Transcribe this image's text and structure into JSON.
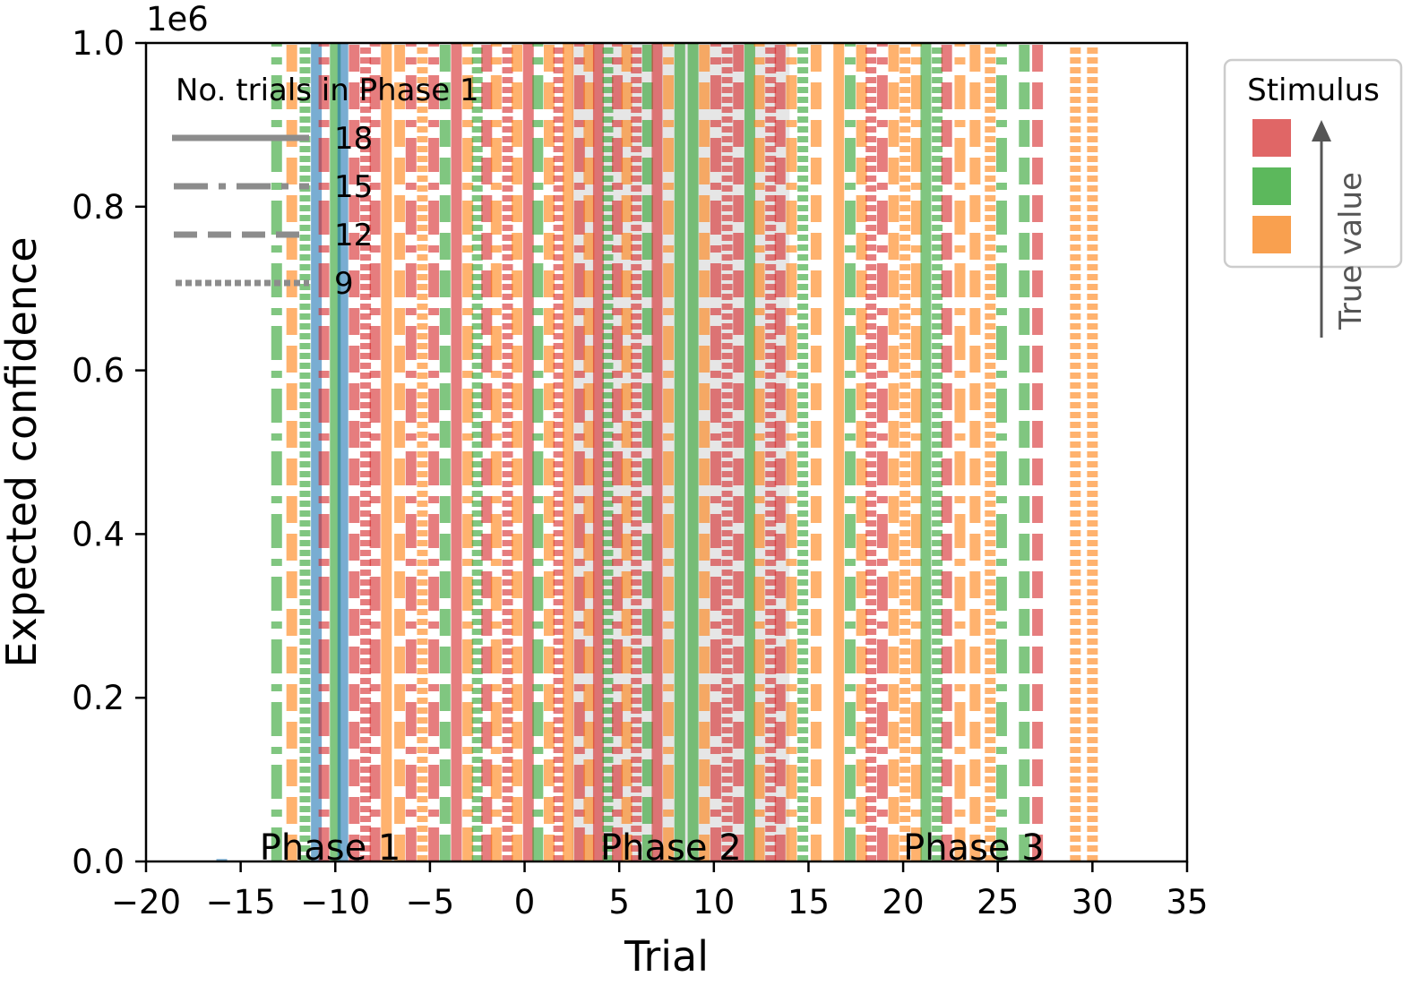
{
  "chart_data": {
    "type": "line",
    "xlabel": "Trial",
    "ylabel": "Expected confidence",
    "xlim": [
      -20,
      35
    ],
    "ylim": [
      0,
      1.0
    ],
    "y_multiplier": "1e6",
    "xticks": [
      -20,
      -15,
      -10,
      -5,
      0,
      5,
      10,
      15,
      20,
      25,
      30,
      35
    ],
    "yticks": [
      0.0,
      0.2,
      0.4,
      0.6,
      0.8,
      1.0
    ],
    "phase_bands": [
      {
        "x0": 2.5,
        "x1": 14
      }
    ],
    "phase_labels": [
      {
        "text": "Phase 1",
        "x": -14
      },
      {
        "text": "Phase 2",
        "x": 4
      },
      {
        "text": "Phase 3",
        "x": 20
      }
    ],
    "linestyle_legend": {
      "title": "No. trials in Phase 1",
      "entries": [
        {
          "label": "18",
          "style": "solid"
        },
        {
          "label": "15",
          "style": "dashdot"
        },
        {
          "label": "12",
          "style": "dashed"
        },
        {
          "label": "9",
          "style": "dotted"
        }
      ]
    },
    "stimulus_legend": {
      "title": "Stimulus",
      "arrow_label": "True value",
      "colors": [
        "#e06666",
        "#5cb85c",
        "#f9a04f"
      ]
    },
    "series_colors": {
      "red": "#d62728",
      "green": "#2ca02c",
      "orange": "#ff7f0e",
      "blue": "#1f77b4"
    },
    "vertical_lines": [
      {
        "x": -16,
        "color": "blue",
        "style": "solid",
        "y1": 0.003
      },
      {
        "x": -13.1,
        "color": "green",
        "style": "dashdot"
      },
      {
        "x": -12.3,
        "color": "orange",
        "style": "dashed"
      },
      {
        "x": -11.6,
        "color": "green",
        "style": "dotted"
      },
      {
        "x": -11.0,
        "color": "blue",
        "style": "solid"
      },
      {
        "x": -10.6,
        "color": "red",
        "style": "dashdot"
      },
      {
        "x": -10.0,
        "color": "green",
        "style": "solid"
      },
      {
        "x": -9.6,
        "color": "blue",
        "style": "solid"
      },
      {
        "x": -9.0,
        "color": "red",
        "style": "dashed"
      },
      {
        "x": -8.4,
        "color": "red",
        "style": "dotted"
      },
      {
        "x": -7.9,
        "color": "red",
        "style": "dashdot"
      },
      {
        "x": -7.3,
        "color": "orange",
        "style": "solid"
      },
      {
        "x": -6.6,
        "color": "orange",
        "style": "dashed"
      },
      {
        "x": -6.0,
        "color": "red",
        "style": "dashdot"
      },
      {
        "x": -5.4,
        "color": "orange",
        "style": "dotted"
      },
      {
        "x": -4.8,
        "color": "red",
        "style": "dashdot"
      },
      {
        "x": -4.2,
        "color": "green",
        "style": "dashed"
      },
      {
        "x": -3.6,
        "color": "red",
        "style": "solid"
      },
      {
        "x": -3.0,
        "color": "orange",
        "style": "dashdot"
      },
      {
        "x": -2.5,
        "color": "green",
        "style": "dotted"
      },
      {
        "x": -2.0,
        "color": "red",
        "style": "dashed"
      },
      {
        "x": -1.5,
        "color": "orange",
        "style": "dashdot"
      },
      {
        "x": -0.9,
        "color": "red",
        "style": "dotted"
      },
      {
        "x": -0.4,
        "color": "orange",
        "style": "dashed"
      },
      {
        "x": 0.2,
        "color": "red",
        "style": "solid"
      },
      {
        "x": 0.7,
        "color": "green",
        "style": "dashdot"
      },
      {
        "x": 1.3,
        "color": "orange",
        "style": "dashed"
      },
      {
        "x": 1.8,
        "color": "red",
        "style": "dotted"
      },
      {
        "x": 2.3,
        "color": "orange",
        "style": "solid"
      },
      {
        "x": 2.9,
        "color": "red",
        "style": "dashdot"
      },
      {
        "x": 3.4,
        "color": "orange",
        "style": "dashed"
      },
      {
        "x": 3.9,
        "color": "red",
        "style": "solid"
      },
      {
        "x": 4.4,
        "color": "green",
        "style": "dotted"
      },
      {
        "x": 4.9,
        "color": "red",
        "style": "dashdot"
      },
      {
        "x": 5.4,
        "color": "orange",
        "style": "dashed"
      },
      {
        "x": 5.9,
        "color": "red",
        "style": "dotted"
      },
      {
        "x": 6.5,
        "color": "green",
        "style": "dashed"
      },
      {
        "x": 7.0,
        "color": "red",
        "style": "solid"
      },
      {
        "x": 7.6,
        "color": "orange",
        "style": "dashdot"
      },
      {
        "x": 8.2,
        "color": "green",
        "style": "solid"
      },
      {
        "x": 8.9,
        "color": "green",
        "style": "solid"
      },
      {
        "x": 9.5,
        "color": "orange",
        "style": "dashed"
      },
      {
        "x": 10.1,
        "color": "red",
        "style": "dashdot"
      },
      {
        "x": 10.7,
        "color": "red",
        "style": "dotted"
      },
      {
        "x": 11.3,
        "color": "red",
        "style": "dashed"
      },
      {
        "x": 11.9,
        "color": "green",
        "style": "solid"
      },
      {
        "x": 12.4,
        "color": "orange",
        "style": "dashdot"
      },
      {
        "x": 13.0,
        "color": "red",
        "style": "dotted"
      },
      {
        "x": 13.5,
        "color": "red",
        "style": "dashed"
      },
      {
        "x": 14.1,
        "color": "orange",
        "style": "dashdot"
      },
      {
        "x": 14.7,
        "color": "green",
        "style": "dotted"
      },
      {
        "x": 15.4,
        "color": "orange",
        "style": "dashed"
      },
      {
        "x": 16.6,
        "color": "orange",
        "style": "solid"
      },
      {
        "x": 17.2,
        "color": "green",
        "style": "dashdot"
      },
      {
        "x": 17.8,
        "color": "orange",
        "style": "dashed"
      },
      {
        "x": 18.3,
        "color": "red",
        "style": "dotted"
      },
      {
        "x": 18.9,
        "color": "red",
        "style": "dashdot"
      },
      {
        "x": 19.5,
        "color": "orange",
        "style": "dashed"
      },
      {
        "x": 20.1,
        "color": "orange",
        "style": "dotted"
      },
      {
        "x": 20.7,
        "color": "orange",
        "style": "dashdot"
      },
      {
        "x": 21.2,
        "color": "green",
        "style": "solid"
      },
      {
        "x": 21.8,
        "color": "green",
        "style": "dotted"
      },
      {
        "x": 22.3,
        "color": "red",
        "style": "dashed"
      },
      {
        "x": 23.0,
        "color": "orange",
        "style": "dashdot"
      },
      {
        "x": 23.8,
        "color": "orange",
        "style": "dashed"
      },
      {
        "x": 24.6,
        "color": "orange",
        "style": "dotted"
      },
      {
        "x": 25.2,
        "color": "green",
        "style": "dashdot"
      },
      {
        "x": 26.4,
        "color": "green",
        "style": "dashed"
      },
      {
        "x": 27.1,
        "color": "red",
        "style": "dashed"
      },
      {
        "x": 29.1,
        "color": "orange",
        "style": "dotted"
      },
      {
        "x": 30.0,
        "color": "orange",
        "style": "dotted"
      }
    ]
  }
}
